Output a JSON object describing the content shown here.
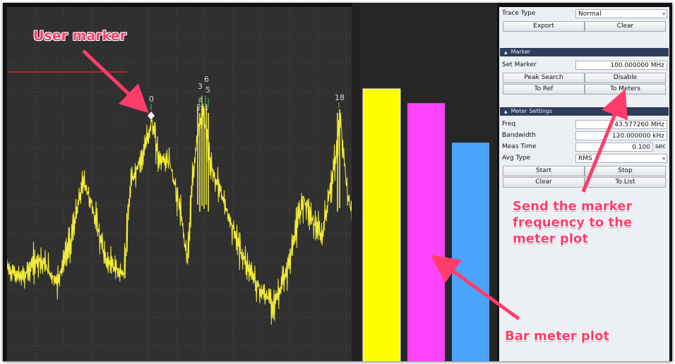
{
  "colors": {
    "trace": "#f2ec37",
    "ref_line": "#d62424",
    "grid": "#454545",
    "marker_label": "#d8d8d8",
    "bar_colors": [
      "#ffff00",
      "#ff44ff",
      "#4aa3ff"
    ],
    "annotation": "#ff3d6a",
    "panel_header": "#2e3d5c"
  },
  "spectrum": {
    "markers": [
      {
        "label": "0",
        "style": "diamond"
      },
      {
        "label": "18",
        "style": "tick"
      }
    ],
    "peak_cluster_labels": [
      "3",
      "6",
      "5",
      "4",
      "2",
      "1"
    ]
  },
  "meters": {
    "levels": [
      0.76,
      0.72,
      0.61
    ]
  },
  "panel": {
    "trace": {
      "type_label": "Trace Type",
      "type_value": "Normal",
      "export": "Export",
      "clear": "Clear"
    },
    "marker": {
      "header": "Marker",
      "set_label": "Set Marker",
      "set_value": "100.000000 MHz",
      "peak_search": "Peak Search",
      "disable": "Disable",
      "to_ref": "To Ref",
      "to_meters": "To Meters"
    },
    "meter": {
      "header": "Meter Settings",
      "freq_label": "Freq",
      "freq_value": "43.577260 MHz",
      "bw_label": "Bandwidth",
      "bw_value": "120.000000 kHz",
      "meas_label": "Meas Time",
      "meas_value": "0.100",
      "meas_unit": "sec",
      "avg_label": "Avg Type",
      "avg_value": "RMS",
      "start": "Start",
      "stop": "Stop",
      "clear": "Clear",
      "to_list": "To List"
    }
  },
  "annotations": {
    "user_marker": "User marker",
    "send_marker": [
      "Send the marker",
      "frequency to the",
      "meter plot"
    ],
    "bar_meter": "Bar meter plot"
  }
}
